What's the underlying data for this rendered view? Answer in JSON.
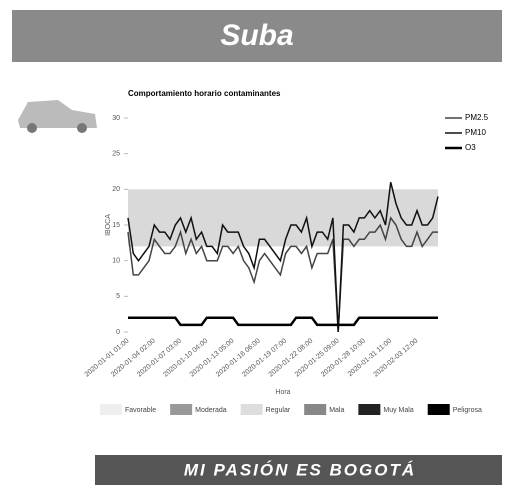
{
  "header": {
    "title": "Suba"
  },
  "footer": {
    "text": "MI PASIÓN ES BOGOTÁ"
  },
  "chart_data": {
    "type": "line",
    "title": "Comportamiento horario contaminantes",
    "y_label": "IBOCA",
    "x_label": "Hora",
    "categories": [
      "2020-01-01 01:00",
      null,
      null,
      null,
      null,
      "2020-01-04 02:00",
      null,
      null,
      null,
      null,
      "2020-01-07 03:00",
      null,
      null,
      null,
      null,
      "2020-01-10 04:00",
      null,
      null,
      null,
      null,
      "2020-01-13 05:00",
      null,
      null,
      null,
      null,
      "2020-01-16 06:00",
      null,
      null,
      null,
      null,
      "2020-01-19 07:00",
      null,
      null,
      null,
      null,
      "2020-01-22 08:00",
      null,
      null,
      null,
      null,
      "2020-01-25 09:00",
      null,
      null,
      null,
      null,
      "2020-01-28 10:00",
      null,
      null,
      null,
      null,
      "2020-01-31 11:00",
      null,
      null,
      null,
      null,
      "2020-02-03 12:00",
      null,
      null,
      null,
      null
    ],
    "series": [
      {
        "name": "PM2.5",
        "color": "#444",
        "width": 1.5,
        "values": [
          14,
          8,
          8,
          9,
          10,
          13,
          12,
          11,
          11,
          12,
          14,
          11,
          13,
          11,
          12,
          10,
          10,
          10,
          12,
          12,
          11,
          12,
          10,
          9,
          7,
          10,
          11,
          10,
          9,
          8,
          11,
          12,
          12,
          11,
          12,
          9,
          11,
          11,
          11,
          13,
          0,
          13,
          13,
          12,
          13,
          13,
          14,
          14,
          15,
          13,
          16,
          15,
          13,
          12,
          12,
          14,
          12,
          13,
          14,
          14
        ]
      },
      {
        "name": "PM10",
        "color": "#111",
        "width": 1.5,
        "values": [
          16,
          11,
          10,
          11,
          12,
          15,
          14,
          14,
          13,
          15,
          16,
          14,
          16,
          13,
          14,
          12,
          12,
          11,
          15,
          14,
          14,
          14,
          12,
          11,
          9,
          13,
          13,
          12,
          11,
          10,
          13,
          15,
          15,
          14,
          16,
          12,
          14,
          14,
          13,
          16,
          0,
          15,
          15,
          14,
          16,
          16,
          17,
          16,
          17,
          15,
          21,
          18,
          16,
          15,
          15,
          17,
          15,
          15,
          16,
          19
        ]
      },
      {
        "name": "O3",
        "color": "#000",
        "width": 2.5,
        "values": [
          2,
          2,
          2,
          2,
          2,
          2,
          2,
          2,
          2,
          2,
          1,
          1,
          1,
          1,
          1,
          2,
          2,
          2,
          2,
          2,
          2,
          1,
          1,
          1,
          1,
          1,
          1,
          1,
          1,
          1,
          1,
          1,
          2,
          2,
          2,
          2,
          1,
          1,
          1,
          1,
          1,
          1,
          1,
          1,
          2,
          2,
          2,
          2,
          2,
          2,
          2,
          2,
          2,
          2,
          2,
          2,
          2,
          2,
          2,
          2
        ]
      }
    ],
    "bands": [
      {
        "from": 12,
        "to": 20,
        "color": "#d9d9d9"
      }
    ],
    "band_legend": [
      {
        "label": "Favorable",
        "color": "#eeeeee"
      },
      {
        "label": "Moderada",
        "color": "#999999"
      },
      {
        "label": "Regular",
        "color": "#dddddd"
      },
      {
        "label": "Mala",
        "color": "#888888"
      },
      {
        "label": "Muy Mala",
        "color": "#222222"
      },
      {
        "label": "Peligrosa",
        "color": "#000000"
      }
    ],
    "ylim": [
      0,
      30
    ],
    "yticks": [
      0,
      5,
      10,
      15,
      20,
      25,
      30
    ],
    "legend": "right"
  }
}
